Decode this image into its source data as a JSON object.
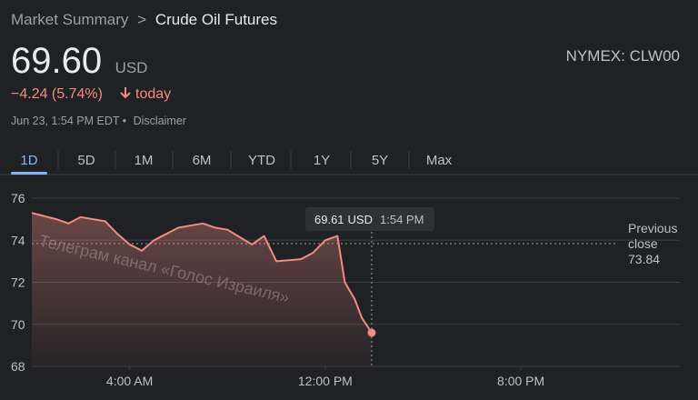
{
  "header": {
    "breadcrumb": [
      "Market Summary",
      ">",
      "Crude Oil Futures"
    ],
    "price": "69.60",
    "currency": "USD",
    "exchange": "NYMEX: CLW00",
    "change": "−4.24 (5.74%)",
    "change_period": "today",
    "timestamp": "Jun 23, 1:54 PM EDT •",
    "disclaimer": "Disclaimer"
  },
  "tabs": [
    "1D",
    "5D",
    "1M",
    "6M",
    "YTD",
    "1Y",
    "5Y",
    "Max"
  ],
  "active_tab": "1D",
  "watermark": "Телеграм канал «Голос Израиля»",
  "chart_data": {
    "type": "line",
    "x": [
      0,
      1,
      1.5,
      2,
      3,
      3.5,
      4,
      4.5,
      5,
      5.5,
      6,
      7,
      7.5,
      8,
      9,
      9.5,
      10,
      11,
      11.5,
      12,
      12.5,
      12.8,
      13.2,
      13.5,
      13.9
    ],
    "series": [
      {
        "name": "Crude Oil Futures",
        "color": "#f28b82",
        "values": [
          75.3,
          75.0,
          74.8,
          75.1,
          74.9,
          74.3,
          73.8,
          73.5,
          74.0,
          74.3,
          74.6,
          74.8,
          74.6,
          74.5,
          73.8,
          74.2,
          73.0,
          73.1,
          73.4,
          74.0,
          74.2,
          72.0,
          71.2,
          70.3,
          69.6
        ]
      }
    ],
    "xlim": [
      0,
      26.5
    ],
    "xticks": [
      {
        "value": 4,
        "label": "4:00 AM"
      },
      {
        "value": 12,
        "label": "12:00 PM"
      },
      {
        "value": 20,
        "label": "8:00 PM"
      }
    ],
    "ylim": [
      68,
      76
    ],
    "yticks": [
      68,
      70,
      72,
      74,
      76
    ],
    "grid": true,
    "previous_close": 73.84,
    "previous_close_label": [
      "Previous",
      "close"
    ],
    "tooltip": {
      "x": 13.9,
      "value": 69.61,
      "unit": "USD",
      "time": "1:54 PM"
    }
  }
}
